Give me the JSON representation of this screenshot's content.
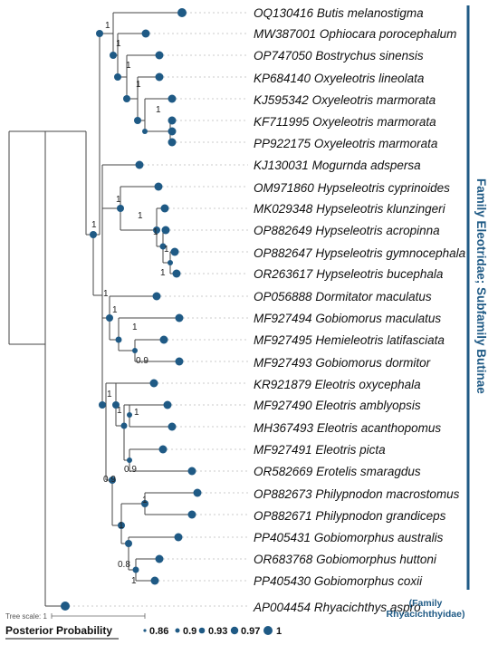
{
  "taxa": [
    {
      "accession": "OQ130416",
      "species": "Butis melanostigma"
    },
    {
      "accession": "MW387001",
      "species": "Ophiocara porocephalum"
    },
    {
      "accession": "OP747050",
      "species": "Bostrychus sinensis"
    },
    {
      "accession": "KP684140",
      "species": "Oxyeleotris lineolata"
    },
    {
      "accession": "KJ595342",
      "species": "Oxyeleotris marmorata"
    },
    {
      "accession": "KF711995",
      "species": "Oxyeleotris marmorata"
    },
    {
      "accession": "PP922175",
      "species": "Oxyeleotris marmorata"
    },
    {
      "accession": "KJ130031",
      "species": "Mogurnda adspersa"
    },
    {
      "accession": "OM971860",
      "species": "Hypseleotris cyprinoides"
    },
    {
      "accession": "MK029348",
      "species": "Hypseleotris klunzingeri"
    },
    {
      "accession": "OP882649",
      "species": "Hypseleotris acropinna"
    },
    {
      "accession": "OP882647",
      "species": "Hypseleotris gymnocephala"
    },
    {
      "accession": "OR263617",
      "species": "Hypseleotris bucephala"
    },
    {
      "accession": "OP056888",
      "species": "Dormitator maculatus"
    },
    {
      "accession": "MF927494",
      "species": "Gobiomorus maculatus"
    },
    {
      "accession": "MF927495",
      "species": "Hemieleotris latifasciata"
    },
    {
      "accession": "MF927493",
      "species": "Gobiomorus dormitor"
    },
    {
      "accession": "KR921879",
      "species": "Eleotris oxycephala"
    },
    {
      "accession": "MF927490",
      "species": "Eleotris amblyopsis"
    },
    {
      "accession": "MH367493",
      "species": "Eleotris acanthopomus"
    },
    {
      "accession": "MF927491",
      "species": "Eleotris picta"
    },
    {
      "accession": "OR582669",
      "species": "Erotelis smaragdus"
    },
    {
      "accession": "OP882673",
      "species": "Philypnodon macrostomus"
    },
    {
      "accession": "OP882671",
      "species": "Philypnodon grandiceps"
    },
    {
      "accession": "PP405431",
      "species": "Gobiomorphus australis"
    },
    {
      "accession": "OR683768",
      "species": "Gobiomorphus huttoni"
    },
    {
      "accession": "PP405430",
      "species": "Gobiomorphus coxii"
    },
    {
      "accession": "AP004454",
      "species": "Rhyacichthys aspro"
    }
  ],
  "support_values": [
    "1",
    "1",
    "1",
    "1",
    "1",
    "1",
    "1",
    "1",
    "1",
    "1",
    "1",
    "1",
    "1",
    "1",
    "0.9",
    "1",
    "1",
    "1",
    "0.9",
    "0.9",
    "1",
    "1",
    "0.8",
    "1"
  ],
  "clade_label": "Family Eleotridae; Subfamily Butinae",
  "outgroup_label": [
    "(Family",
    "Rhyacichthyidae)"
  ],
  "tree_scale": "Tree scale: 1",
  "legend": {
    "title": "Posterior Probability",
    "values": [
      "0.86",
      "0.9",
      "0.93",
      "0.97",
      "1"
    ]
  },
  "colors": {
    "node": "#1f5a85",
    "branch": "#444444",
    "clade": "#1f5a85"
  }
}
